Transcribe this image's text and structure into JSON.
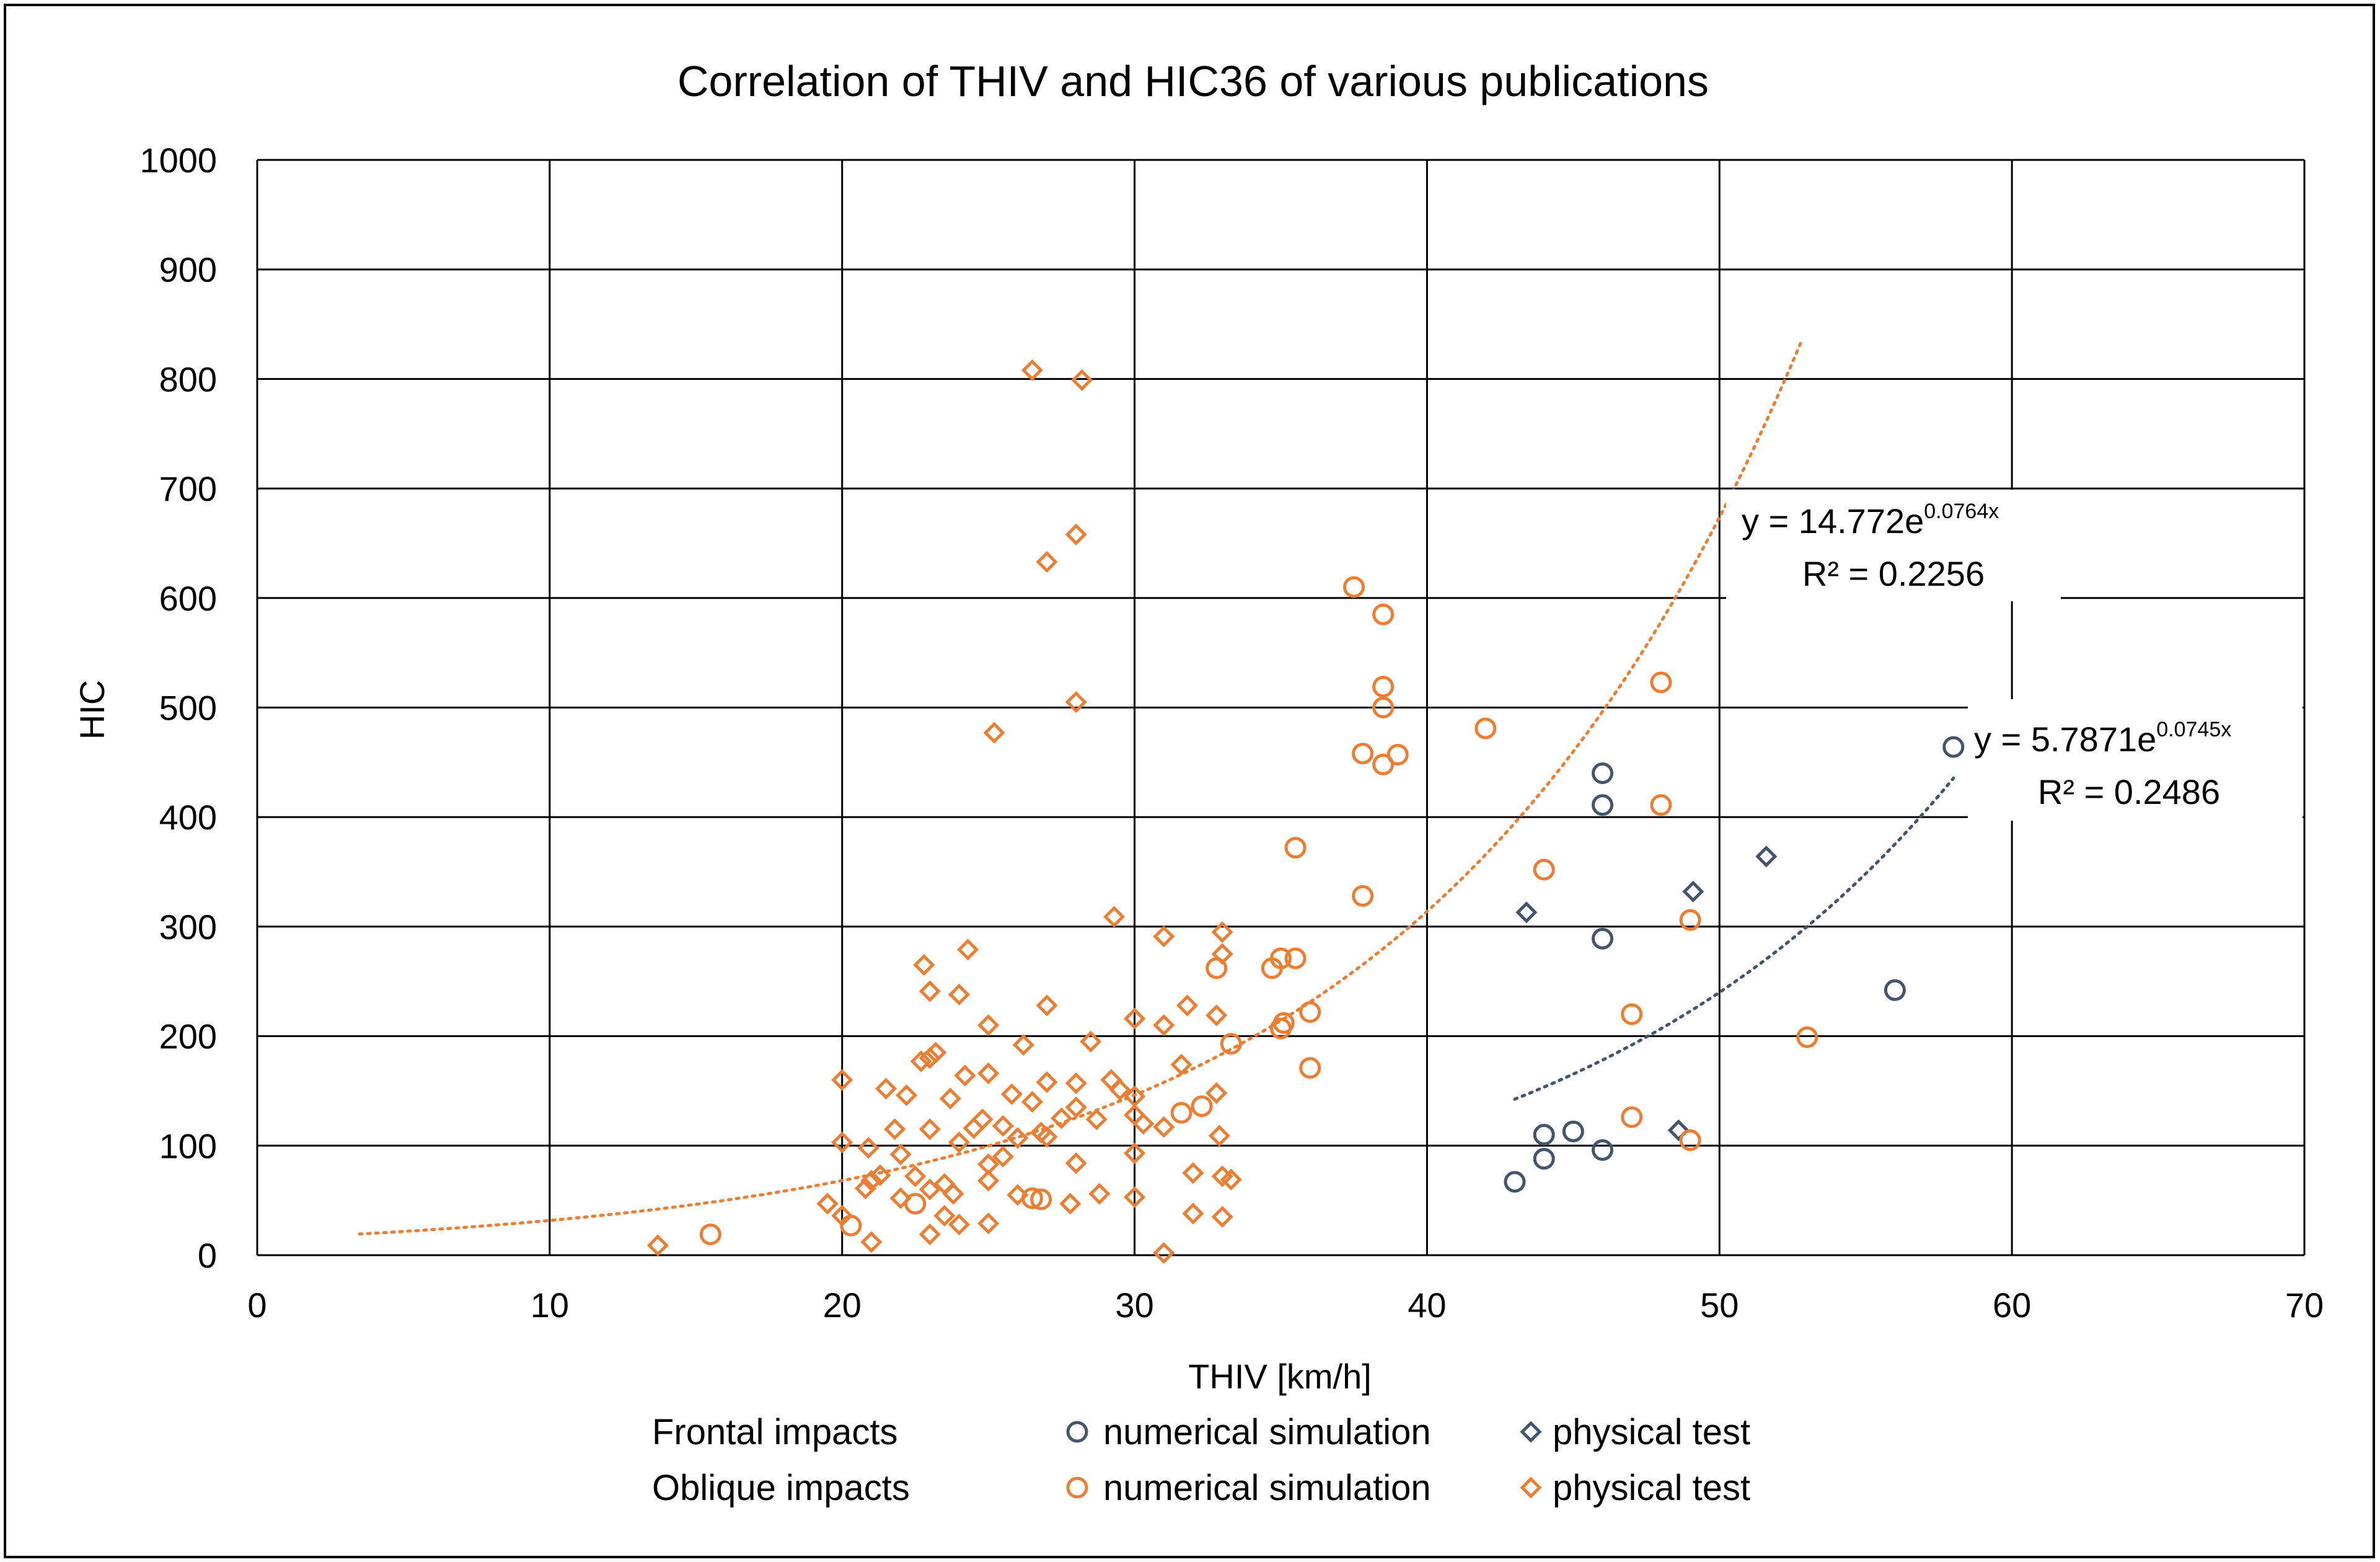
{
  "colors": {
    "oblique": "#ed7d31",
    "frontal": "#44546a",
    "grid": "#000000",
    "frame": "#000000"
  },
  "chart_data": {
    "type": "scatter",
    "title": "Correlation of THIV and HIC36 of various publications",
    "xlabel": "THIV [km/h]",
    "ylabel": "HIC",
    "xlim": [
      0,
      70
    ],
    "ylim": [
      0,
      1000
    ],
    "xticks": [
      "0",
      "10",
      "20",
      "30",
      "40",
      "50",
      "60",
      "70"
    ],
    "yticks": [
      "0",
      "100",
      "200",
      "300",
      "400",
      "500",
      "600",
      "700",
      "800",
      "900",
      "1000"
    ],
    "grid": true,
    "legend": {
      "rows": [
        {
          "label": "Frontal impacts",
          "sim": "numerical simulation",
          "test": "physical test"
        },
        {
          "label": "Oblique impacts",
          "sim": "numerical simulation",
          "test": "physical test"
        }
      ]
    },
    "series": [
      {
        "name": "Frontal impacts - numerical simulation",
        "group": "frontal",
        "marker": "circle",
        "points": [
          [
            43,
            67
          ],
          [
            44,
            88
          ],
          [
            44,
            110
          ],
          [
            45,
            113
          ],
          [
            46,
            96
          ],
          [
            46,
            289
          ],
          [
            46,
            411
          ],
          [
            46,
            440
          ],
          [
            56,
            242
          ],
          [
            58,
            464
          ]
        ]
      },
      {
        "name": "Frontal impacts - physical test",
        "group": "frontal",
        "marker": "diamond",
        "points": [
          [
            43.4,
            313
          ],
          [
            49.1,
            332
          ],
          [
            51.6,
            364
          ],
          [
            48.6,
            114
          ]
        ]
      },
      {
        "name": "Oblique impacts - numerical simulation",
        "group": "oblique",
        "marker": "circle",
        "points": [
          [
            15.5,
            19
          ],
          [
            20.3,
            27
          ],
          [
            22.5,
            47
          ],
          [
            26.5,
            52
          ],
          [
            26.8,
            51
          ],
          [
            31.6,
            130
          ],
          [
            32.3,
            136
          ],
          [
            32.8,
            262
          ],
          [
            33.3,
            193
          ],
          [
            34.7,
            262
          ],
          [
            35,
            271
          ],
          [
            35,
            207
          ],
          [
            35.1,
            212
          ],
          [
            35.5,
            271
          ],
          [
            35.5,
            372
          ],
          [
            36,
            222
          ],
          [
            36,
            171
          ],
          [
            37.5,
            610
          ],
          [
            37.8,
            328
          ],
          [
            37.8,
            458
          ],
          [
            38.5,
            448
          ],
          [
            38.5,
            500
          ],
          [
            38.5,
            519
          ],
          [
            38.5,
            585
          ],
          [
            39,
            457
          ],
          [
            42,
            481
          ],
          [
            44,
            352
          ],
          [
            47,
            220
          ],
          [
            47,
            126
          ],
          [
            48,
            411
          ],
          [
            48,
            523
          ],
          [
            49,
            306
          ],
          [
            49,
            105
          ],
          [
            53,
            199
          ]
        ]
      },
      {
        "name": "Oblique impacts - physical test",
        "group": "oblique",
        "marker": "diamond",
        "points": [
          [
            13.7,
            9
          ],
          [
            19.5,
            47
          ],
          [
            20,
            160
          ],
          [
            20,
            103
          ],
          [
            20,
            36
          ],
          [
            20.8,
            61
          ],
          [
            20.9,
            98
          ],
          [
            21,
            12
          ],
          [
            21,
            68
          ],
          [
            21.3,
            73
          ],
          [
            21.5,
            152
          ],
          [
            21.8,
            115
          ],
          [
            22,
            52
          ],
          [
            22,
            92
          ],
          [
            22.2,
            146
          ],
          [
            22.5,
            72
          ],
          [
            22.7,
            177
          ],
          [
            22.8,
            265
          ],
          [
            23,
            180
          ],
          [
            23,
            241
          ],
          [
            23,
            115
          ],
          [
            23,
            60
          ],
          [
            23,
            19
          ],
          [
            23.2,
            185
          ],
          [
            23.5,
            65
          ],
          [
            23.5,
            36
          ],
          [
            23.7,
            143
          ],
          [
            23.8,
            56
          ],
          [
            24,
            28
          ],
          [
            24,
            103
          ],
          [
            24,
            238
          ],
          [
            24.2,
            164
          ],
          [
            24.3,
            279
          ],
          [
            24.5,
            116
          ],
          [
            24.8,
            124
          ],
          [
            25,
            210
          ],
          [
            25,
            166
          ],
          [
            25,
            83
          ],
          [
            25,
            68
          ],
          [
            25,
            29
          ],
          [
            25.2,
            477
          ],
          [
            25.5,
            118
          ],
          [
            25.5,
            90
          ],
          [
            25.8,
            147
          ],
          [
            26,
            107
          ],
          [
            26,
            55
          ],
          [
            26.2,
            192
          ],
          [
            26.5,
            140
          ],
          [
            26.5,
            808
          ],
          [
            26.8,
            112
          ],
          [
            27,
            228
          ],
          [
            27,
            158
          ],
          [
            27,
            108
          ],
          [
            27,
            633
          ],
          [
            27.5,
            125
          ],
          [
            27.8,
            47
          ],
          [
            28,
            157
          ],
          [
            28,
            135
          ],
          [
            28,
            84
          ],
          [
            28,
            505
          ],
          [
            28,
            658
          ],
          [
            28.2,
            799
          ],
          [
            28.5,
            195
          ],
          [
            28.7,
            124
          ],
          [
            28.8,
            56
          ],
          [
            29.2,
            160
          ],
          [
            29.3,
            309
          ],
          [
            29.5,
            151
          ],
          [
            30,
            145
          ],
          [
            30,
            93
          ],
          [
            30,
            216
          ],
          [
            30,
            128
          ],
          [
            30,
            53
          ],
          [
            30.3,
            120
          ],
          [
            31,
            117
          ],
          [
            31,
            291
          ],
          [
            31,
            210
          ],
          [
            31,
            2
          ],
          [
            31.6,
            174
          ],
          [
            31.8,
            228
          ],
          [
            32,
            75
          ],
          [
            32,
            38
          ],
          [
            32.8,
            148
          ],
          [
            32.8,
            219
          ],
          [
            32.9,
            109
          ],
          [
            33,
            275
          ],
          [
            33,
            295
          ],
          [
            33,
            72
          ],
          [
            33,
            35
          ],
          [
            33.3,
            69
          ]
        ]
      }
    ],
    "trendlines": [
      {
        "series": "oblique",
        "formula": "exp",
        "a": 14.772,
        "b": 0.0764,
        "x_range": [
          3.5,
          52.8
        ],
        "equation_prefix": "y = 14.772e",
        "equation_exp": "0.0764x",
        "r2_label": "R² = 0.2256"
      },
      {
        "series": "frontal",
        "formula": "exp",
        "a": 5.7871,
        "b": 0.0745,
        "x_range": [
          43,
          58
        ],
        "equation_prefix": "y = 5.7871e",
        "equation_exp": "0.0745x",
        "r2_label": "R² = 0.2486"
      }
    ]
  }
}
